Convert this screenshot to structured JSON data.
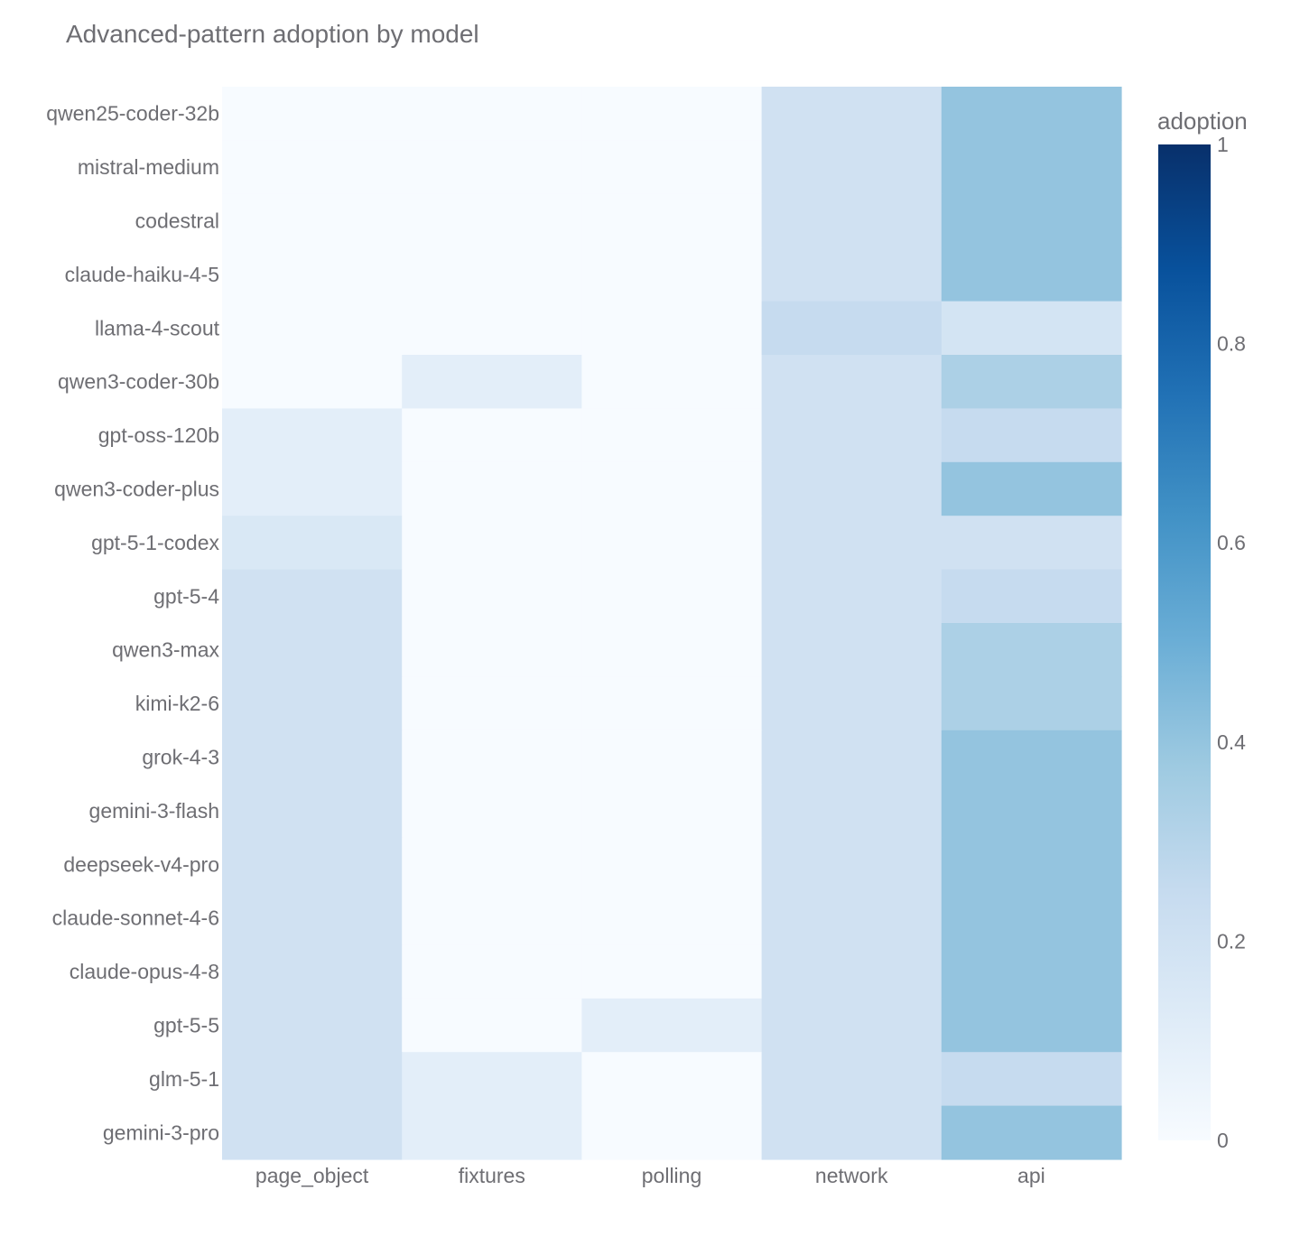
{
  "chart_data": {
    "type": "heatmap",
    "title": "Advanced-pattern adoption by model",
    "xlabel": "",
    "ylabel": "",
    "x_categories": [
      "page_object",
      "fixtures",
      "polling",
      "network",
      "api"
    ],
    "y_categories": [
      "qwen25-coder-32b",
      "mistral-medium",
      "codestral",
      "claude-haiku-4-5",
      "llama-4-scout",
      "qwen3-coder-30b",
      "gpt-oss-120b",
      "qwen3-coder-plus",
      "gpt-5-1-codex",
      "gpt-5-4",
      "qwen3-max",
      "kimi-k2-6",
      "grok-4-3",
      "gemini-3-flash",
      "deepseek-v4-pro",
      "claude-sonnet-4-6",
      "claude-opus-4-8",
      "gpt-5-5",
      "glm-5-1",
      "gemini-3-pro"
    ],
    "values": [
      [
        0.0,
        0.0,
        0.0,
        0.2,
        0.4
      ],
      [
        0.0,
        0.0,
        0.0,
        0.2,
        0.4
      ],
      [
        0.0,
        0.0,
        0.0,
        0.2,
        0.4
      ],
      [
        0.0,
        0.0,
        0.0,
        0.2,
        0.4
      ],
      [
        0.0,
        0.0,
        0.0,
        0.25,
        0.18
      ],
      [
        0.0,
        0.1,
        0.0,
        0.2,
        0.33
      ],
      [
        0.1,
        0.0,
        0.0,
        0.2,
        0.25
      ],
      [
        0.1,
        0.0,
        0.0,
        0.2,
        0.4
      ],
      [
        0.15,
        0.0,
        0.0,
        0.2,
        0.2
      ],
      [
        0.2,
        0.0,
        0.0,
        0.2,
        0.25
      ],
      [
        0.2,
        0.0,
        0.0,
        0.2,
        0.33
      ],
      [
        0.2,
        0.0,
        0.0,
        0.2,
        0.33
      ],
      [
        0.2,
        0.0,
        0.0,
        0.2,
        0.4
      ],
      [
        0.2,
        0.0,
        0.0,
        0.2,
        0.4
      ],
      [
        0.2,
        0.0,
        0.0,
        0.2,
        0.4
      ],
      [
        0.2,
        0.0,
        0.0,
        0.2,
        0.4
      ],
      [
        0.2,
        0.0,
        0.0,
        0.2,
        0.4
      ],
      [
        0.2,
        0.0,
        0.1,
        0.2,
        0.4
      ],
      [
        0.2,
        0.1,
        0.0,
        0.2,
        0.25
      ],
      [
        0.2,
        0.1,
        0.0,
        0.2,
        0.4
      ]
    ],
    "colorscale": "Blues",
    "colorbar": {
      "title": "adoption",
      "range": [
        0,
        1
      ],
      "ticks": [
        0,
        0.2,
        0.4,
        0.6,
        0.8,
        1
      ],
      "tick_labels": [
        "0",
        "0.2",
        "0.4",
        "0.6",
        "0.8",
        "1"
      ]
    }
  }
}
